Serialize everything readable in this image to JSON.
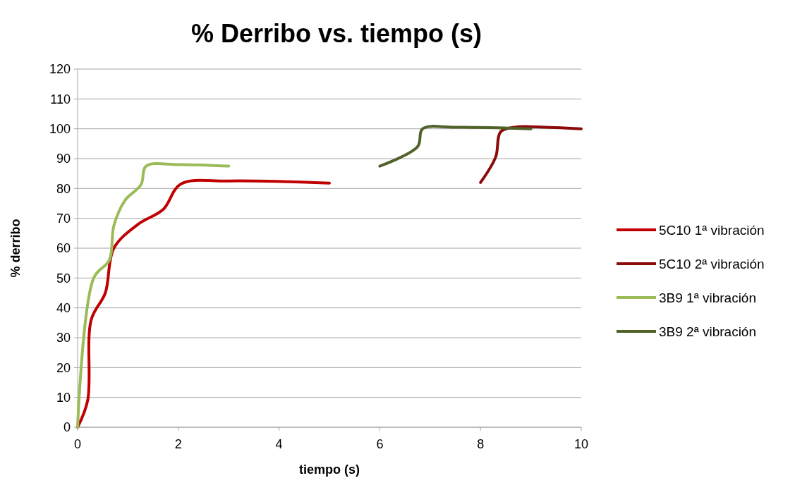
{
  "chart_data": {
    "type": "line",
    "title": "% Derribo vs. tiempo (s)",
    "xlabel": "tiempo (s)",
    "ylabel": "% derribo",
    "xlim": [
      0,
      10
    ],
    "xticks": [
      0,
      2,
      4,
      6,
      8,
      10
    ],
    "ylim": [
      0,
      120
    ],
    "yticks": [
      0,
      10,
      20,
      30,
      40,
      50,
      60,
      70,
      80,
      90,
      100,
      110,
      120
    ],
    "grid": "y",
    "legend": "right",
    "marker": "none",
    "series": [
      {
        "name": "5C10 1ª vibración",
        "color": "#c00000",
        "x": [
          0,
          0.2,
          0.27,
          0.55,
          0.72,
          1.2,
          1.7,
          2.05,
          3,
          5
        ],
        "values": [
          0,
          9,
          36,
          45,
          60,
          68,
          73,
          81.5,
          82.5,
          81.8
        ]
      },
      {
        "name": "5C10 2ª vibración",
        "color": "#8b0a0a",
        "x": [
          8,
          8.3,
          8.4,
          8.7,
          9,
          10
        ],
        "values": [
          82,
          90.5,
          99,
          100.6,
          100.7,
          100
        ]
      },
      {
        "name": "3B9 1ª vibración",
        "color": "#9bbb59",
        "x": [
          0,
          0.32,
          0.63,
          0.72,
          0.94,
          1.26,
          1.36,
          2,
          3
        ],
        "values": [
          0,
          50,
          56,
          67.5,
          76,
          81.3,
          87.5,
          88,
          87.5
        ]
      },
      {
        "name": "3B9 2ª vibración",
        "color": "#4f6228",
        "x": [
          6,
          6.75,
          6.85,
          7.5,
          9
        ],
        "values": [
          87.5,
          94,
          100,
          100.5,
          100
        ]
      }
    ]
  }
}
